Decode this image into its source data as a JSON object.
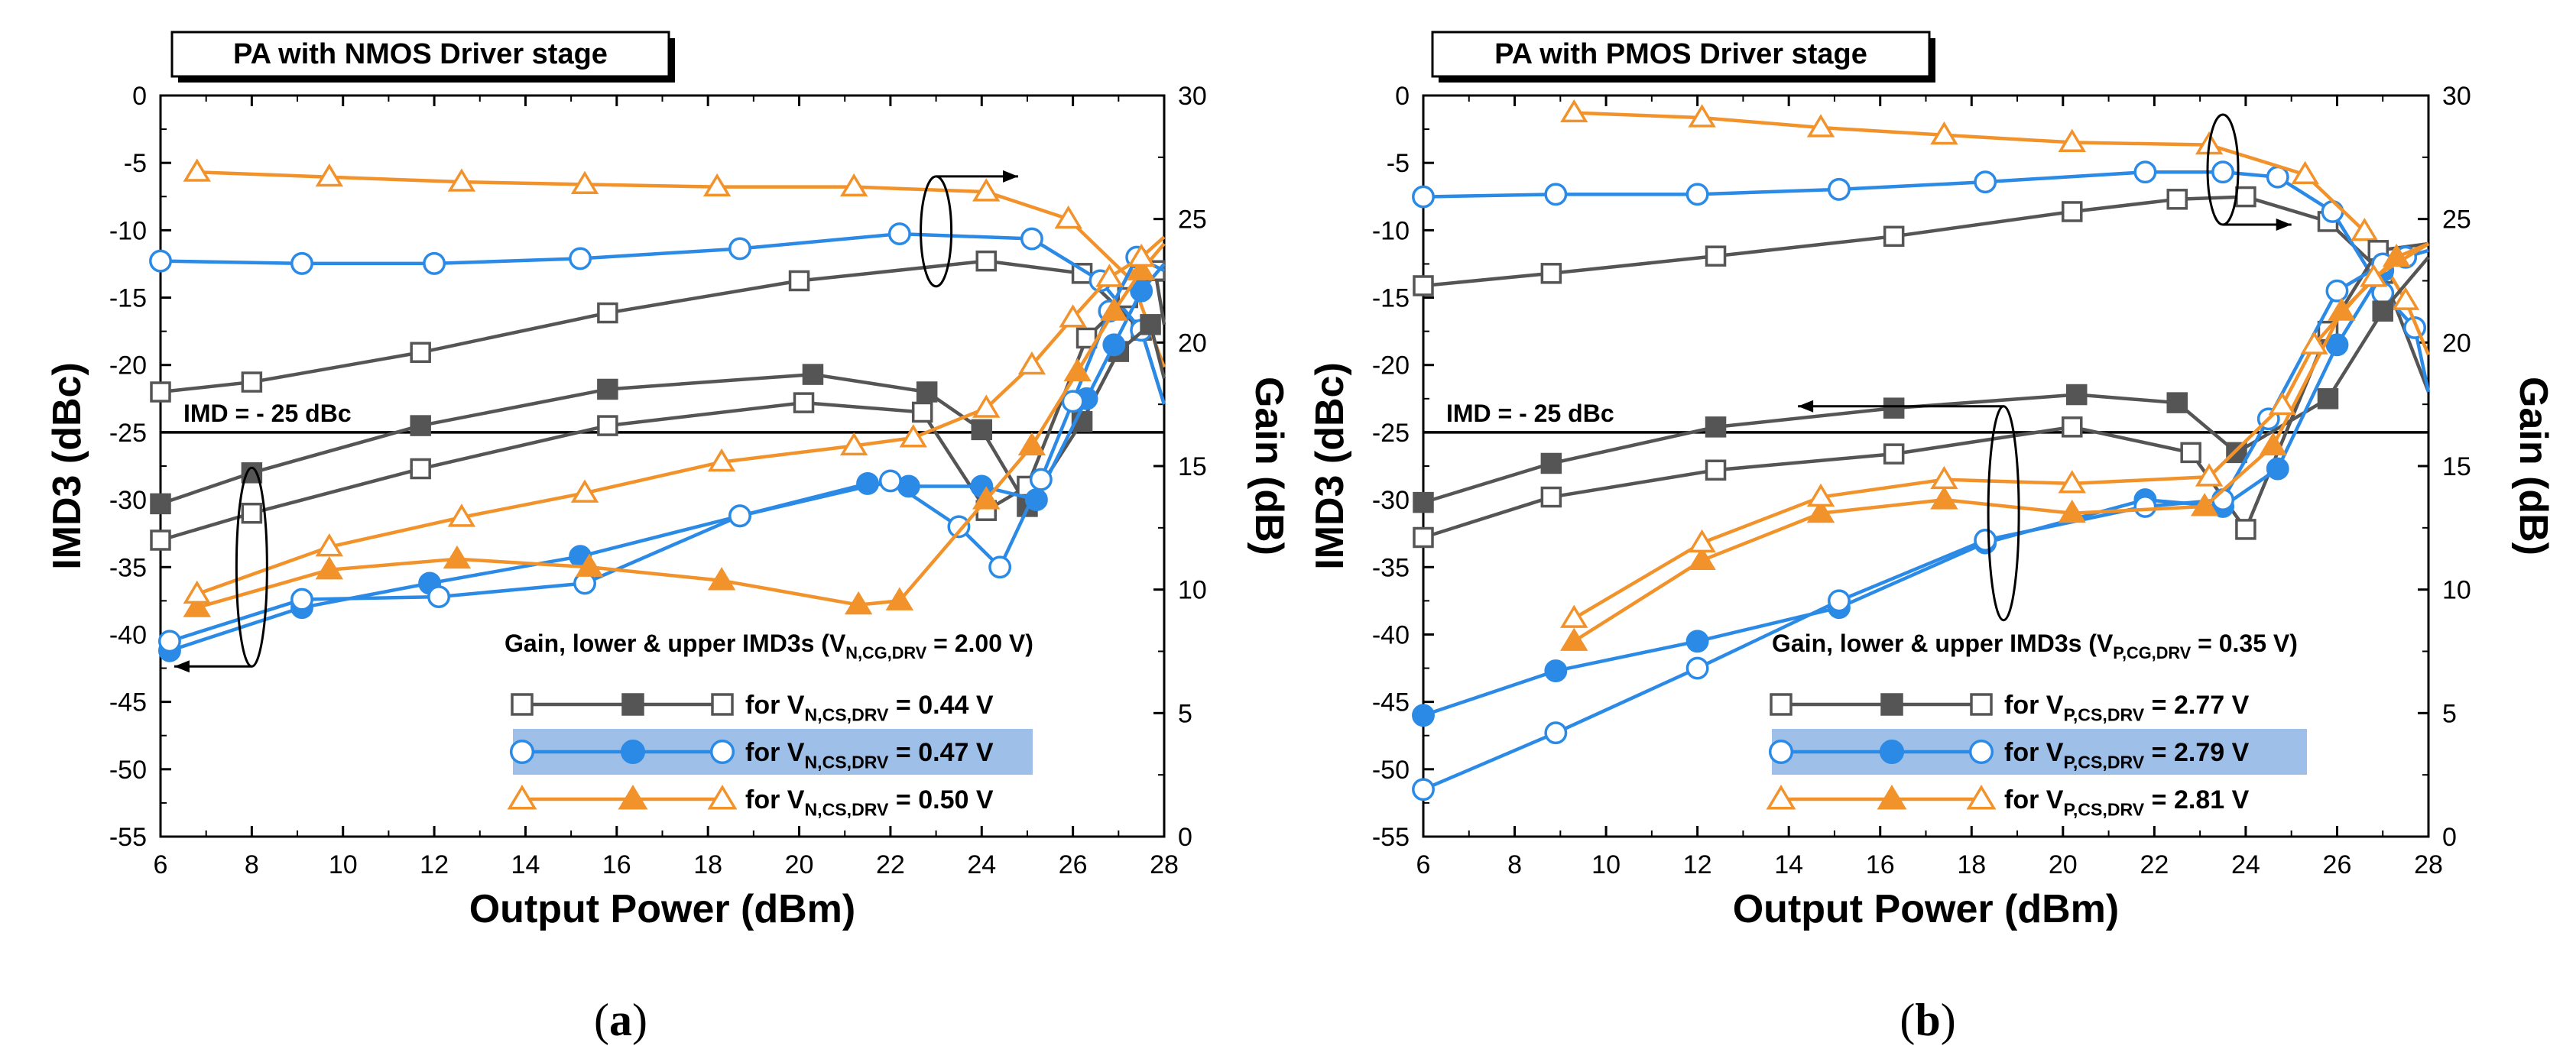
{
  "colors": {
    "gray": "#555555",
    "blue": "#2a8ae6",
    "orange": "#f2922b",
    "highlight": "#9ebfe8"
  },
  "chart_data": [
    {
      "type": "line",
      "title": "PA with NMOS Driver stage",
      "panel_label": "a",
      "xlabel": "Output Power (dBm)",
      "ylabel": "IMD3 (dBc)",
      "y2label": "Gain (dB)",
      "xlim": [
        6,
        28
      ],
      "ylim": [
        -55,
        0
      ],
      "y2lim": [
        0,
        30
      ],
      "xticks": [
        "6",
        "8",
        "10",
        "12",
        "14",
        "16",
        "18",
        "20",
        "22",
        "24",
        "26",
        "28"
      ],
      "yticks": [
        "0",
        "-5",
        "-10",
        "-15",
        "-20",
        "-25",
        "-30",
        "-35",
        "-40",
        "-45",
        "-50",
        "-55"
      ],
      "y2ticks": [
        "30",
        "25",
        "20",
        "15",
        "10",
        "5",
        "0"
      ],
      "reference_line": {
        "value": -25,
        "label": "IMD = - 25 dBc"
      },
      "legend_title": {
        "pre": "Gain, lower & upper IMD3s (V",
        "sub": "N,CG,DRV",
        "post": " = 2.00 V)"
      },
      "legend": [
        {
          "pre": "for V",
          "sub": "N,CS,DRV",
          "post": " = 0.44 V",
          "color": "#555555",
          "marker": "square"
        },
        {
          "pre": "for V",
          "sub": "N,CS,DRV",
          "post": " = 0.47 V",
          "color": "#2a8ae6",
          "marker": "circle",
          "highlight": true
        },
        {
          "pre": "for V",
          "sub": "N,CS,DRV",
          "post": " = 0.50 V",
          "color": "#f2922b",
          "marker": "triangle"
        }
      ],
      "series": [
        {
          "name": "Gain (0.44 V)",
          "axis": "right",
          "color": "#555555",
          "marker": "square",
          "fill": false,
          "x": [
            6,
            8,
            11.7,
            15.8,
            20,
            24.1,
            26.2,
            27.5,
            28
          ],
          "y": [
            18.0,
            18.4,
            19.6,
            21.2,
            22.5,
            23.3,
            22.8,
            20.5,
            17.5
          ]
        },
        {
          "name": "Gain (0.47 V)",
          "axis": "right",
          "color": "#2a8ae6",
          "marker": "circle",
          "fill": false,
          "x": [
            6,
            9.1,
            12,
            15.2,
            18.7,
            22.2,
            25.1,
            26.6,
            27.5,
            28
          ],
          "y": [
            23.3,
            23.2,
            23.2,
            23.4,
            23.8,
            24.4,
            24.2,
            22.5,
            20.5,
            17.5
          ]
        },
        {
          "name": "Gain (0.50 V)",
          "axis": "right",
          "color": "#f2922b",
          "marker": "triangle",
          "fill": false,
          "x": [
            6.8,
            9.7,
            12.6,
            15.3,
            18.2,
            21.2,
            24.1,
            25.9,
            27.3,
            28
          ],
          "y": [
            26.9,
            26.7,
            26.5,
            26.4,
            26.3,
            26.3,
            26.1,
            25.0,
            22.5,
            19.0
          ]
        },
        {
          "name": "Lower IMD3 (0.44 V)",
          "axis": "left",
          "color": "#555555",
          "marker": "square",
          "fill": true,
          "x": [
            6,
            8,
            11.7,
            15.8,
            20.3,
            22.8,
            24,
            25,
            26.2,
            27,
            27.7,
            28
          ],
          "y": [
            -30.3,
            -28,
            -24.5,
            -21.8,
            -20.7,
            -22,
            -24.8,
            -30.5,
            -24.2,
            -19,
            -17,
            -21
          ]
        },
        {
          "name": "Upper IMD3 (0.44 V)",
          "axis": "left",
          "color": "#555555",
          "marker": "square",
          "fill": false,
          "x": [
            6,
            8,
            11.7,
            15.8,
            20.1,
            22.7,
            24.1,
            25,
            26.3,
            27.2,
            27.8,
            28
          ],
          "y": [
            -33,
            -31,
            -27.7,
            -24.5,
            -22.8,
            -23.5,
            -30.8,
            -29,
            -18,
            -15,
            -13,
            -17
          ]
        },
        {
          "name": "Lower IMD3 (0.47 V)",
          "axis": "left",
          "color": "#2a8ae6",
          "marker": "circle",
          "fill": true,
          "x": [
            6.2,
            9.1,
            11.9,
            15.2,
            18.7,
            21.5,
            22.4,
            24,
            25.2,
            26.3,
            26.9,
            27.5,
            28
          ],
          "y": [
            -41.2,
            -38,
            -36.2,
            -34.2,
            -31.2,
            -28.8,
            -29,
            -29,
            -30,
            -22.5,
            -18.5,
            -14.5,
            -12.5
          ]
        },
        {
          "name": "Upper IMD3 (0.47 V)",
          "axis": "left",
          "color": "#2a8ae6",
          "marker": "circle",
          "fill": false,
          "x": [
            6.2,
            9.1,
            12.1,
            15.3,
            18.7,
            22,
            23.5,
            24.4,
            25.3,
            26,
            26.8,
            27.4,
            28
          ],
          "y": [
            -40.5,
            -37.4,
            -37.2,
            -36.2,
            -31.2,
            -28.6,
            -32,
            -35,
            -28.5,
            -22.7,
            -16,
            -12,
            -13
          ]
        },
        {
          "name": "Lower IMD3 (0.50 V)",
          "axis": "left",
          "color": "#f2922b",
          "marker": "triangle",
          "fill": true,
          "x": [
            6.8,
            9.7,
            12.5,
            15.4,
            18.3,
            21.3,
            22.2,
            24.1,
            25.1,
            26.1,
            26.9,
            27.5,
            28
          ],
          "y": [
            -38,
            -35.2,
            -34.4,
            -35,
            -36,
            -37.8,
            -37.5,
            -30,
            -26,
            -20.5,
            -16,
            -13,
            -11
          ]
        },
        {
          "name": "Upper IMD3 (0.50 V)",
          "axis": "left",
          "color": "#f2922b",
          "marker": "triangle",
          "fill": false,
          "x": [
            6.8,
            9.7,
            12.6,
            15.3,
            18.3,
            21.2,
            22.5,
            24.1,
            25.1,
            26,
            26.8,
            27.5,
            28
          ],
          "y": [
            -37,
            -33.5,
            -31.3,
            -29.5,
            -27.2,
            -26,
            -25.4,
            -23.2,
            -20,
            -16.5,
            -13.5,
            -12,
            -10.5
          ]
        }
      ]
    },
    {
      "type": "line",
      "title": "PA with PMOS Driver stage",
      "panel_label": "b",
      "xlabel": "Output Power (dBm)",
      "ylabel": "IMD3 (dBc)",
      "y2label": "Gain (dB)",
      "xlim": [
        6,
        28
      ],
      "ylim": [
        -55,
        0
      ],
      "y2lim": [
        0,
        30
      ],
      "xticks": [
        "6",
        "8",
        "10",
        "12",
        "14",
        "16",
        "18",
        "20",
        "22",
        "24",
        "26",
        "28"
      ],
      "yticks": [
        "0",
        "-5",
        "-10",
        "-15",
        "-20",
        "-25",
        "-30",
        "-35",
        "-40",
        "-45",
        "-50",
        "-55"
      ],
      "y2ticks": [
        "30",
        "25",
        "20",
        "15",
        "10",
        "5",
        "0"
      ],
      "reference_line": {
        "value": -25,
        "label": "IMD = - 25 dBc"
      },
      "legend_title": {
        "pre": "Gain, lower & upper IMD3s (V",
        "sub": "P,CG,DRV",
        "post": " = 0.35 V)"
      },
      "legend": [
        {
          "pre": "for V",
          "sub": "P,CS,DRV",
          "post": " = 2.77 V",
          "color": "#555555",
          "marker": "square"
        },
        {
          "pre": "for V",
          "sub": "P,CS,DRV",
          "post": " = 2.79 V",
          "color": "#2a8ae6",
          "marker": "circle",
          "highlight": true
        },
        {
          "pre": "for V",
          "sub": "P,CS,DRV",
          "post": " = 2.81 V",
          "color": "#f2922b",
          "marker": "triangle"
        }
      ],
      "series": [
        {
          "name": "Gain (2.77 V)",
          "axis": "right",
          "color": "#555555",
          "marker": "square",
          "fill": false,
          "x": [
            6,
            8.8,
            12.4,
            16.3,
            20.2,
            22.5,
            24,
            25.8,
            27,
            28
          ],
          "y": [
            22.3,
            22.8,
            23.5,
            24.3,
            25.3,
            25.8,
            25.9,
            24.9,
            22.8,
            18.0
          ]
        },
        {
          "name": "Gain (2.79 V)",
          "axis": "right",
          "color": "#2a8ae6",
          "marker": "circle",
          "fill": false,
          "x": [
            6,
            8.9,
            12,
            15.1,
            18.3,
            21.8,
            23.5,
            24.7,
            25.9,
            27,
            27.7,
            28
          ],
          "y": [
            25.9,
            26.0,
            26.0,
            26.2,
            26.5,
            26.9,
            26.9,
            26.7,
            25.3,
            22.0,
            20.6,
            18.0
          ]
        },
        {
          "name": "Gain (2.81 V)",
          "axis": "right",
          "color": "#f2922b",
          "marker": "triangle",
          "fill": false,
          "x": [
            9.3,
            12.1,
            14.7,
            17.4,
            20.2,
            23.2,
            25.3,
            26.6,
            27.5,
            28
          ],
          "y": [
            29.3,
            29.1,
            28.7,
            28.4,
            28.1,
            28.0,
            26.8,
            24.5,
            21.7,
            19.5
          ]
        },
        {
          "name": "Lower IMD3 (2.77 V)",
          "axis": "left",
          "color": "#555555",
          "marker": "square",
          "fill": true,
          "x": [
            6,
            8.8,
            12.4,
            16.3,
            20.3,
            22.5,
            23.8,
            25.8,
            27,
            28
          ],
          "y": [
            -30.2,
            -27.3,
            -24.6,
            -23.2,
            -22.2,
            -22.8,
            -26.5,
            -22.5,
            -16,
            -12
          ]
        },
        {
          "name": "Upper IMD3 (2.77 V)",
          "axis": "left",
          "color": "#555555",
          "marker": "square",
          "fill": false,
          "x": [
            6,
            8.8,
            12.4,
            16.3,
            20.2,
            22.8,
            24,
            25.8,
            26.9,
            28
          ],
          "y": [
            -32.8,
            -29.8,
            -27.8,
            -26.6,
            -24.6,
            -26.5,
            -32.2,
            -17.5,
            -11.5,
            -11
          ]
        },
        {
          "name": "Lower IMD3 (2.79 V)",
          "axis": "left",
          "color": "#2a8ae6",
          "marker": "circle",
          "fill": true,
          "x": [
            6,
            8.9,
            12,
            15.1,
            18.3,
            21.8,
            23.5,
            24.7,
            26,
            27,
            27.5,
            28
          ],
          "y": [
            -46,
            -42.7,
            -40.5,
            -38,
            -33.2,
            -30,
            -30.5,
            -27.7,
            -18.5,
            -13,
            -12,
            -11.5
          ]
        },
        {
          "name": "Upper IMD3 (2.79 V)",
          "axis": "left",
          "color": "#2a8ae6",
          "marker": "circle",
          "fill": false,
          "x": [
            6,
            8.9,
            12,
            15.1,
            18.3,
            21.8,
            23.5,
            24.5,
            26,
            27,
            27.5,
            28
          ],
          "y": [
            -51.5,
            -47.3,
            -42.5,
            -37.5,
            -33,
            -30.5,
            -30,
            -24,
            -14.5,
            -12.5,
            -12,
            -11
          ]
        },
        {
          "name": "Lower IMD3 (2.81 V)",
          "axis": "left",
          "color": "#f2922b",
          "marker": "triangle",
          "fill": true,
          "x": [
            9.3,
            12.1,
            14.7,
            17.4,
            20.2,
            23.1,
            24.6,
            26.1,
            27.3,
            28
          ],
          "y": [
            -40.5,
            -34.5,
            -31,
            -30,
            -31,
            -30.5,
            -26,
            -16,
            -12,
            -11
          ]
        },
        {
          "name": "Upper IMD3 (2.81 V)",
          "axis": "left",
          "color": "#f2922b",
          "marker": "triangle",
          "fill": false,
          "x": [
            9.3,
            12.1,
            14.7,
            17.4,
            20.2,
            23.2,
            24.8,
            25.5,
            26.8,
            28
          ],
          "y": [
            -38.8,
            -33.2,
            -29.8,
            -28.5,
            -28.8,
            -28.3,
            -23,
            -18.5,
            -13.5,
            -11
          ]
        }
      ]
    }
  ]
}
